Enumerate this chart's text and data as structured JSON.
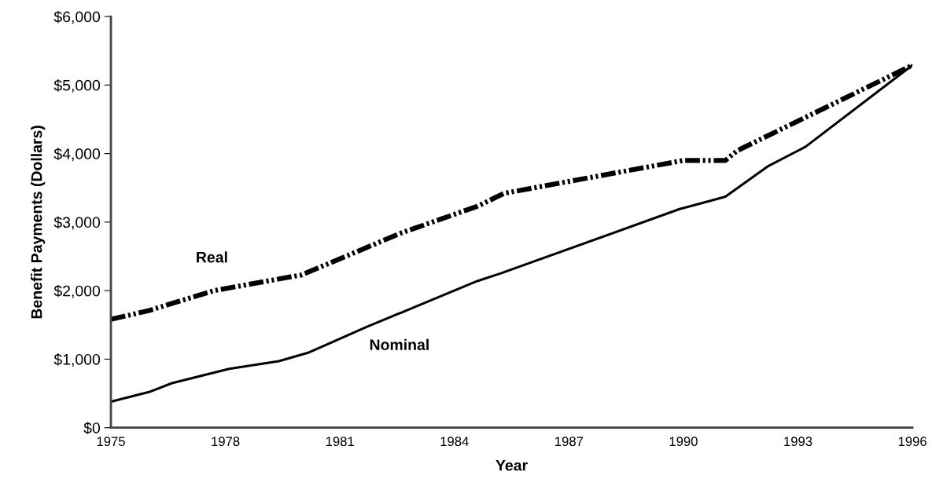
{
  "chart_data": {
    "type": "line",
    "xlabel": "Year",
    "ylabel": "Benefit Payments (Dollars)",
    "xlim": [
      1975,
      1996
    ],
    "ylim": [
      0,
      6000
    ],
    "xticks": [
      1975,
      1978,
      1981,
      1984,
      1987,
      1990,
      1993,
      1996
    ],
    "yticks": [
      {
        "value": 0,
        "label": "$0"
      },
      {
        "value": 1000,
        "label": "$1,000"
      },
      {
        "value": 2000,
        "label": "$2,000"
      },
      {
        "value": 3000,
        "label": "$3,000"
      },
      {
        "value": 4000,
        "label": "$4,000"
      },
      {
        "value": 5000,
        "label": "$5,000"
      },
      {
        "value": 6000,
        "label": "$6,000"
      }
    ],
    "grid": false,
    "legend": false,
    "series": [
      {
        "name": "Real",
        "color": "#000000",
        "line_style": "dashed",
        "x": [
          1975,
          1976.0,
          1977.7,
          1980.0,
          1982.6,
          1984.6,
          1985.3,
          1990.0,
          1991.1,
          1991.4,
          1996
        ],
        "values": [
          1580,
          1710,
          2000,
          2230,
          2840,
          3230,
          3420,
          3900,
          3900,
          4040,
          5290
        ]
      },
      {
        "name": "Nominal",
        "color": "#000000",
        "line_style": "solid",
        "x": [
          1975,
          1976.0,
          1976.6,
          1978.1,
          1979.4,
          1980.2,
          1981.7,
          1984.6,
          1985.2,
          1989.9,
          1991.1,
          1992.2,
          1993.2,
          1996
        ],
        "values": [
          380,
          520,
          650,
          860,
          970,
          1100,
          1470,
          2140,
          2250,
          3190,
          3370,
          3810,
          4100,
          5290
        ]
      }
    ]
  }
}
